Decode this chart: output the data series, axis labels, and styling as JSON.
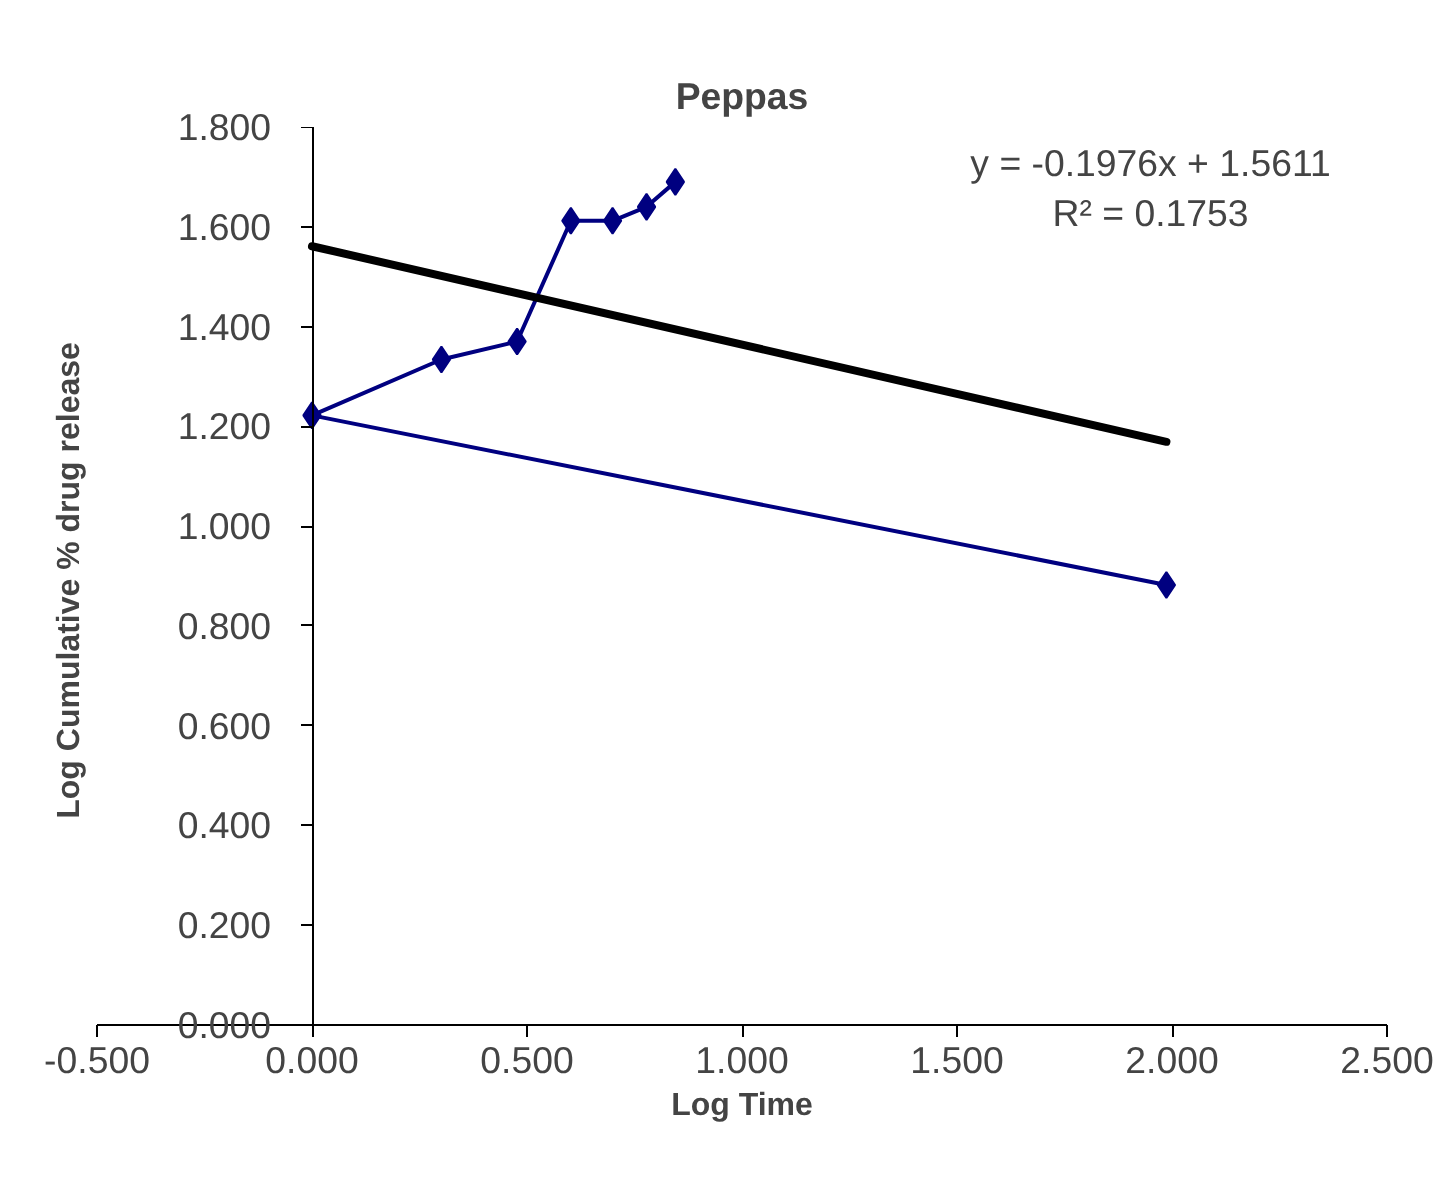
{
  "chart_data": {
    "type": "line",
    "title": "Peppas",
    "xlabel": "Log Time",
    "ylabel": "Log Cumulative  % drug release",
    "series": [
      {
        "color": "#000080",
        "marker": "diamond",
        "x": [
          1.987,
          0.0,
          0.301,
          0.477,
          0.602,
          0.699,
          0.778,
          0.845
        ],
        "values": [
          0.882,
          1.222,
          1.334,
          1.37,
          1.612,
          1.612,
          1.64,
          1.69
        ]
      },
      {
        "color": "#000000",
        "marker": "none",
        "x": [
          0.0,
          1.987
        ],
        "values": [
          1.561,
          1.169
        ]
      }
    ],
    "annotations": [
      "y = -0.1976x + 1.5611",
      "R² = 0.1753"
    ],
    "xlim": [
      -0.5,
      2.5
    ],
    "ylim": [
      0,
      1.8
    ],
    "xticks": [
      {
        "value": -0.5,
        "label": "-0.500"
      },
      {
        "value": 0,
        "label": "0.000"
      },
      {
        "value": 0.5,
        "label": "0.500"
      },
      {
        "value": 1,
        "label": "1.000"
      },
      {
        "value": 1.5,
        "label": "1.500"
      },
      {
        "value": 2,
        "label": "2.000"
      },
      {
        "value": 2.5,
        "label": "2.500"
      }
    ],
    "yticks": [
      {
        "value": 0,
        "label": "0.000"
      },
      {
        "value": 0.2,
        "label": "0.200"
      },
      {
        "value": 0.4,
        "label": "0.400"
      },
      {
        "value": 0.6,
        "label": "0.600"
      },
      {
        "value": 0.8,
        "label": "0.800"
      },
      {
        "value": 1.0,
        "label": "1.000"
      },
      {
        "value": 1.2,
        "label": "1.200"
      },
      {
        "value": 1.4,
        "label": "1.400"
      },
      {
        "value": 1.6,
        "label": "1.600"
      },
      {
        "value": 1.8,
        "label": "1.800"
      }
    ],
    "grid": false
  }
}
